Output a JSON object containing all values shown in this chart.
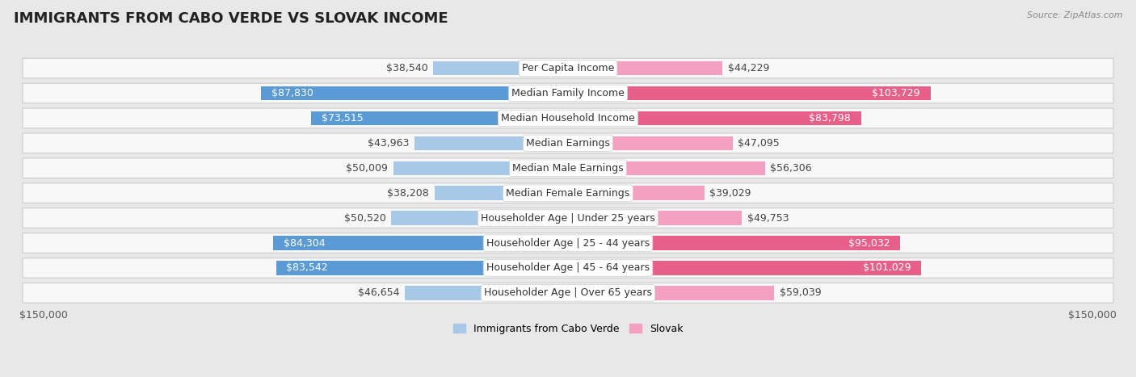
{
  "title": "IMMIGRANTS FROM CABO VERDE VS SLOVAK INCOME",
  "source": "Source: ZipAtlas.com",
  "categories": [
    "Per Capita Income",
    "Median Family Income",
    "Median Household Income",
    "Median Earnings",
    "Median Male Earnings",
    "Median Female Earnings",
    "Householder Age | Under 25 years",
    "Householder Age | 25 - 44 years",
    "Householder Age | 45 - 64 years",
    "Householder Age | Over 65 years"
  ],
  "cabo_verde": [
    38540,
    87830,
    73515,
    43963,
    50009,
    38208,
    50520,
    84304,
    83542,
    46654
  ],
  "slovak": [
    44229,
    103729,
    83798,
    47095,
    56306,
    39029,
    49753,
    95032,
    101029,
    59039
  ],
  "cabo_verde_color_light": "#a8c8e8",
  "cabo_verde_color_dark": "#5b9bd5",
  "slovak_color_light": "#f4a0c0",
  "slovak_color_dark": "#e8608a",
  "max_val": 150000,
  "bg_color": "#e8e8e8",
  "row_bg": "#f8f8f8",
  "row_border": "#cccccc",
  "title_fontsize": 13,
  "source_fontsize": 8,
  "axis_label_fontsize": 9,
  "bar_label_fontsize": 9,
  "category_fontsize": 9,
  "legend_fontsize": 9,
  "dark_threshold": 65000
}
